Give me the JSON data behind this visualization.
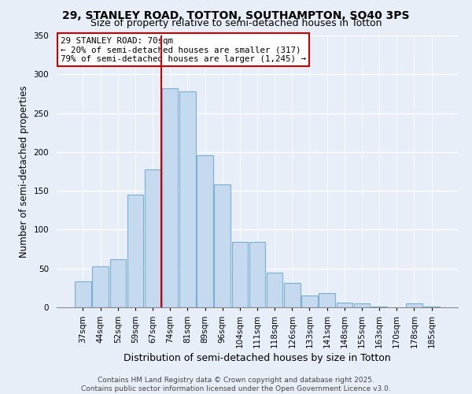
{
  "title": "29, STANLEY ROAD, TOTTON, SOUTHAMPTON, SO40 3PS",
  "subtitle": "Size of property relative to semi-detached houses in Totton",
  "xlabel": "Distribution of semi-detached houses by size in Totton",
  "ylabel": "Number of semi-detached properties",
  "bar_labels": [
    "37sqm",
    "44sqm",
    "52sqm",
    "59sqm",
    "67sqm",
    "74sqm",
    "81sqm",
    "89sqm",
    "96sqm",
    "104sqm",
    "111sqm",
    "118sqm",
    "126sqm",
    "133sqm",
    "141sqm",
    "148sqm",
    "155sqm",
    "163sqm",
    "170sqm",
    "178sqm",
    "185sqm"
  ],
  "bar_values": [
    33,
    53,
    62,
    145,
    178,
    282,
    278,
    196,
    158,
    84,
    84,
    45,
    31,
    15,
    18,
    6,
    5,
    1,
    0,
    5,
    1
  ],
  "bar_color": "#c5d9ef",
  "bar_edge_color": "#7aafd4",
  "vline_color": "#cc0000",
  "annotation_title": "29 STANLEY ROAD: 70sqm",
  "annotation_line1": "← 20% of semi-detached houses are smaller (317)",
  "annotation_line2": "79% of semi-detached houses are larger (1,245) →",
  "annotation_box_color": "white",
  "annotation_box_edge": "#cc0000",
  "ylim": [
    0,
    350
  ],
  "yticks": [
    0,
    50,
    100,
    150,
    200,
    250,
    300,
    350
  ],
  "background_color": "#e8eef8",
  "plot_bg_color": "#e8eef8",
  "grid_color": "white",
  "footer_line1": "Contains HM Land Registry data © Crown copyright and database right 2025.",
  "footer_line2": "Contains public sector information licensed under the Open Government Licence v3.0.",
  "title_fontsize": 10,
  "subtitle_fontsize": 9,
  "xlabel_fontsize": 9,
  "ylabel_fontsize": 8.5,
  "tick_fontsize": 7.5,
  "footer_fontsize": 6.5
}
